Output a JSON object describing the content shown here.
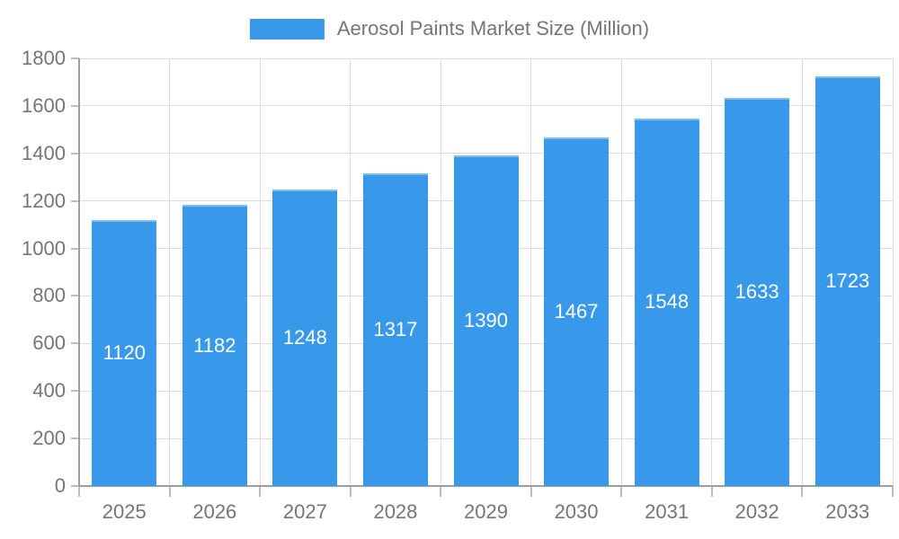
{
  "chart_data": {
    "type": "bar",
    "legend": "Aerosol Paints Market Size (Million)",
    "categories": [
      "2025",
      "2026",
      "2027",
      "2028",
      "2029",
      "2030",
      "2031",
      "2032",
      "2033"
    ],
    "values": [
      1120,
      1182,
      1248,
      1317,
      1390,
      1467,
      1548,
      1633,
      1723
    ],
    "ylim": [
      0,
      1800
    ],
    "yticks": [
      0,
      200,
      400,
      600,
      800,
      1000,
      1200,
      1400,
      1600,
      1800
    ],
    "grid": "on",
    "legend_position": "top-center",
    "bar_color": "#3899EA",
    "value_label_color": "#FFFFFF",
    "axis_text_color": "#757575"
  }
}
